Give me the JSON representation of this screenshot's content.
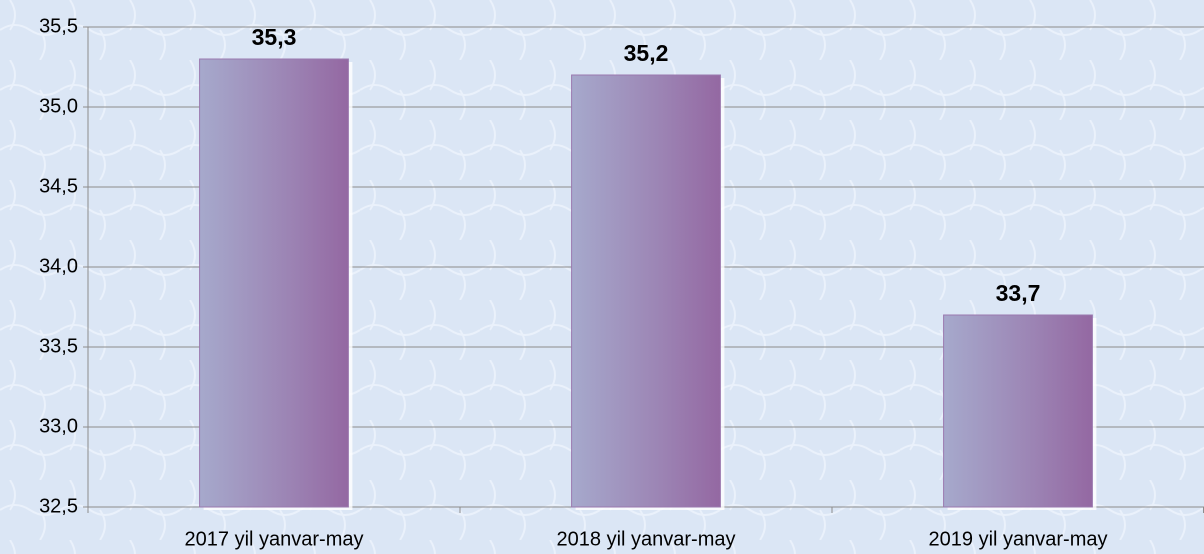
{
  "chart_data": {
    "type": "bar",
    "categories": [
      "2017 yil yanvar-may",
      "2018 yil yanvar-may",
      "2019 yil yanvar-may"
    ],
    "values": [
      35.3,
      35.2,
      33.7
    ],
    "value_labels": [
      "35,3",
      "35,2",
      "33,7"
    ],
    "color": "#9a78ae",
    "ylim": [
      32.5,
      35.5
    ],
    "yticks": [
      {
        "value": 32.5,
        "label": "32,5"
      },
      {
        "value": 33.0,
        "label": "33,0"
      },
      {
        "value": 33.5,
        "label": "33,5"
      },
      {
        "value": 34.0,
        "label": "34,0"
      },
      {
        "value": 34.5,
        "label": "34,5"
      },
      {
        "value": 35.0,
        "label": "35,0"
      },
      {
        "value": 35.5,
        "label": "35,5"
      }
    ],
    "grid": true
  }
}
